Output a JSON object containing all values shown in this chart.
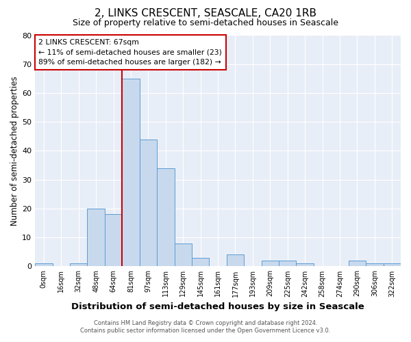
{
  "title": "2, LINKS CRESCENT, SEASCALE, CA20 1RB",
  "subtitle": "Size of property relative to semi-detached houses in Seascale",
  "xlabel": "Distribution of semi-detached houses by size in Seascale",
  "ylabel": "Number of semi-detached properties",
  "bin_labels": [
    "0sqm",
    "16sqm",
    "32sqm",
    "48sqm",
    "64sqm",
    "81sqm",
    "97sqm",
    "113sqm",
    "129sqm",
    "145sqm",
    "161sqm",
    "177sqm",
    "193sqm",
    "209sqm",
    "225sqm",
    "242sqm",
    "258sqm",
    "274sqm",
    "290sqm",
    "306sqm",
    "322sqm"
  ],
  "bar_values": [
    1,
    0,
    1,
    20,
    18,
    65,
    44,
    34,
    8,
    3,
    0,
    4,
    0,
    2,
    2,
    1,
    0,
    0,
    2,
    1,
    1
  ],
  "bar_color": "#c8d9ed",
  "bar_edge_color": "#5b9bd5",
  "vline_x": 5,
  "vline_color": "#cc0000",
  "ylim": [
    0,
    80
  ],
  "yticks": [
    0,
    10,
    20,
    30,
    40,
    50,
    60,
    70,
    80
  ],
  "annotation_title": "2 LINKS CRESCENT: 67sqm",
  "annotation_line1": "← 11% of semi-detached houses are smaller (23)",
  "annotation_line2": "89% of semi-detached houses are larger (182) →",
  "annotation_box_color": "#ffffff",
  "annotation_box_edge": "#cc0000",
  "footer_line1": "Contains HM Land Registry data © Crown copyright and database right 2024.",
  "footer_line2": "Contains public sector information licensed under the Open Government Licence v3.0.",
  "background_color": "#ffffff",
  "plot_bg_color": "#e8eef7",
  "title_fontsize": 11,
  "subtitle_fontsize": 9,
  "xlabel_fontsize": 9.5,
  "ylabel_fontsize": 8.5
}
